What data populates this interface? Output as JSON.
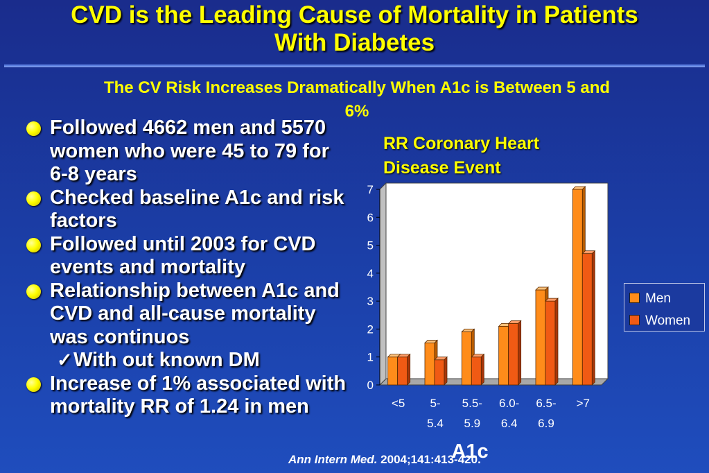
{
  "title_line1": "CVD is the Leading Cause of Mortality in Patients",
  "title_line2": "With Diabetes",
  "subtitle_line1": "The CV Risk Increases Dramatically When A1c is Between 5 and",
  "subtitle_line2": "6%",
  "bullets": [
    "Followed 4662 men and 5570 women who were 45 to 79 for 6-8 years",
    "Checked baseline A1c and risk factors",
    "Followed until 2003 for CVD events and mortality",
    "Relationship between A1c and CVD and all-cause mortality was continuos",
    "With out known DM",
    "Increase of 1% associated with mortality RR of 1.24 in men"
  ],
  "check_glyph": "✓",
  "citation": {
    "journal": "Ann Intern Med.",
    "details": " 2004;141:413-420."
  },
  "colors": {
    "men": "#ff8c1a",
    "women": "#f05a14",
    "title": "#ffff00"
  },
  "chart_data": {
    "type": "bar",
    "title": "RR Coronary Heart Disease Event",
    "xlabel": "A1c",
    "ylabel": "",
    "categories": [
      "<5",
      "5-5.4",
      "5.5-5.9",
      "6.0-6.4",
      "6.5-6.9",
      ">7"
    ],
    "category_labels": [
      [
        "<5",
        ""
      ],
      [
        "5-",
        "5.4"
      ],
      [
        "5.5-",
        "5.9"
      ],
      [
        "6.0-",
        "6.4"
      ],
      [
        "6.5-",
        "6.9"
      ],
      [
        ">7",
        ""
      ]
    ],
    "series": [
      {
        "name": "Men",
        "values": [
          1,
          1.5,
          1.9,
          2.1,
          3.4,
          7
        ]
      },
      {
        "name": "Women",
        "values": [
          1,
          0.9,
          1,
          2.2,
          3,
          4.7
        ]
      }
    ],
    "ylim": [
      0,
      7
    ],
    "yticks": [
      0,
      1,
      2,
      3,
      4,
      5,
      6,
      7
    ],
    "grid": false,
    "legend": "right"
  }
}
